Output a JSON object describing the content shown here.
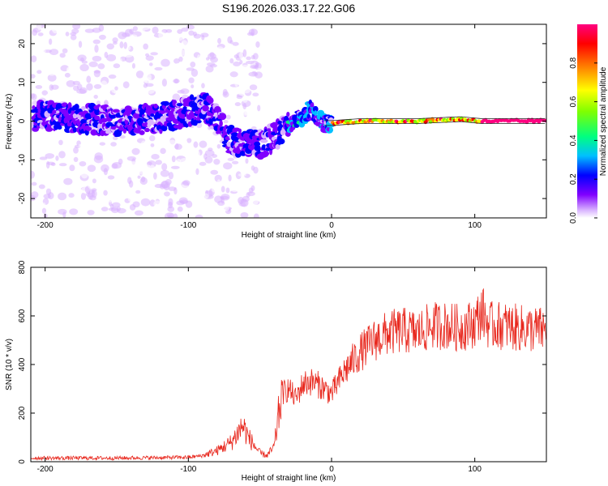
{
  "title": "S196.2026.033.17.22.G06",
  "chart_data": [
    {
      "type": "heatmap",
      "name": "spectrogram",
      "xlabel": "Height of straight line (km)",
      "ylabel": "Frequency (Hz)",
      "xlim": [
        -210,
        150
      ],
      "ylim": [
        -25,
        25
      ],
      "xticks": [
        -200,
        -100,
        0,
        100
      ],
      "yticks": [
        20,
        10,
        0,
        -10,
        -20
      ],
      "colorbar": {
        "label": "Normalized spectral amplitude",
        "range": [
          0,
          1
        ],
        "ticks": [
          0.0,
          0.2,
          0.4,
          0.6,
          0.8
        ],
        "colors": [
          "#ffffff",
          "#d9b3ff",
          "#8000ff",
          "#0000ff",
          "#00c0ff",
          "#00ff80",
          "#80ff00",
          "#ffff00",
          "#ff8000",
          "#ff0000",
          "#ff0080"
        ]
      },
      "ridge": [
        {
          "x": -205,
          "f": 1.5
        },
        {
          "x": -190,
          "f": 1.0
        },
        {
          "x": -170,
          "f": 0.5
        },
        {
          "x": -150,
          "f": 0.0
        },
        {
          "x": -130,
          "f": 0.5
        },
        {
          "x": -110,
          "f": 1.5
        },
        {
          "x": -95,
          "f": 3.0
        },
        {
          "x": -88,
          "f": 4.0
        },
        {
          "x": -80,
          "f": 0.0
        },
        {
          "x": -70,
          "f": -5.0
        },
        {
          "x": -60,
          "f": -6.0
        },
        {
          "x": -50,
          "f": -6.0
        },
        {
          "x": -40,
          "f": -4.0
        },
        {
          "x": -30,
          "f": -1.0
        },
        {
          "x": -20,
          "f": 1.0
        },
        {
          "x": -15,
          "f": 3.0
        },
        {
          "x": -10,
          "f": 1.0
        },
        {
          "x": -5,
          "f": -0.5
        },
        {
          "x": 0,
          "f": -0.5
        },
        {
          "x": 20,
          "f": 0.0
        },
        {
          "x": 60,
          "f": 0.0
        },
        {
          "x": 90,
          "f": 0.5
        },
        {
          "x": 105,
          "f": 0.0
        },
        {
          "x": 150,
          "f": 0.0
        }
      ]
    },
    {
      "type": "line",
      "name": "snr",
      "xlabel": "Height of straight line (km)",
      "ylabel": "SNR (10 * v/v)",
      "xlim": [
        -210,
        150
      ],
      "ylim": [
        0,
        800
      ],
      "xticks": [
        -200,
        -100,
        0,
        100
      ],
      "yticks": [
        0,
        200,
        400,
        600,
        800
      ],
      "color": "#e8281e",
      "series": [
        {
          "name": "SNR",
          "x": [
            -210,
            -150,
            -100,
            -90,
            -80,
            -70,
            -62,
            -58,
            -50,
            -45,
            -40,
            -35,
            -30,
            -25,
            -20,
            -15,
            -10,
            -5,
            0,
            10,
            20,
            30,
            40,
            50,
            60,
            70,
            80,
            90,
            100,
            105,
            110,
            120,
            130,
            140,
            150
          ],
          "y": [
            15,
            15,
            18,
            25,
            45,
            80,
            150,
            100,
            35,
            25,
            60,
            280,
            300,
            260,
            320,
            330,
            320,
            300,
            280,
            380,
            450,
            500,
            530,
            540,
            530,
            560,
            560,
            550,
            570,
            620,
            560,
            560,
            550,
            545,
            540
          ]
        }
      ]
    }
  ]
}
